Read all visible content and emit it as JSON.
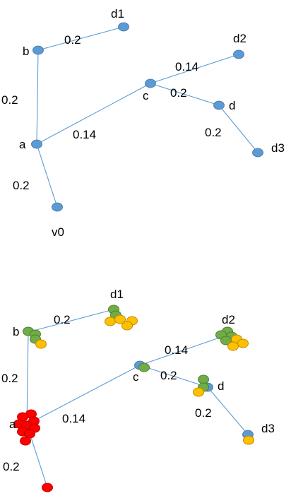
{
  "top_graph": {
    "nodes": [
      "d1",
      "b",
      "d2",
      "c",
      "d",
      "a",
      "d3",
      "v0"
    ],
    "edges": [
      {
        "from": "b",
        "to": "d1",
        "weight": "0.2"
      },
      {
        "from": "b",
        "to": "a",
        "weight": "0.2"
      },
      {
        "from": "a",
        "to": "c",
        "weight": "0.14"
      },
      {
        "from": "c",
        "to": "d2",
        "weight": "0.14"
      },
      {
        "from": "c",
        "to": "d",
        "weight": "0.2"
      },
      {
        "from": "d",
        "to": "d3",
        "weight": "0.2"
      },
      {
        "from": "a",
        "to": "v0",
        "weight": "0.2"
      }
    ]
  },
  "bottom_graph": {
    "nodes": [
      "d1",
      "b",
      "d2",
      "c",
      "d",
      "a",
      "d3"
    ],
    "edges": [
      {
        "from": "b",
        "to": "d1",
        "weight": "0.2"
      },
      {
        "from": "b",
        "to": "a",
        "weight": "0.2"
      },
      {
        "from": "a",
        "to": "c",
        "weight": "0.14"
      },
      {
        "from": "c",
        "to": "d2",
        "weight": "0.14"
      },
      {
        "from": "c",
        "to": "d",
        "weight": "0.2"
      },
      {
        "from": "d",
        "to": "d3",
        "weight": "0.2"
      },
      {
        "from": "a",
        "to": "v0",
        "weight": "0.2"
      }
    ],
    "colors": {
      "red": "#ff0000",
      "green": "#70ad47",
      "yellow": "#ffc000",
      "blue": "#5b9bd5"
    }
  }
}
